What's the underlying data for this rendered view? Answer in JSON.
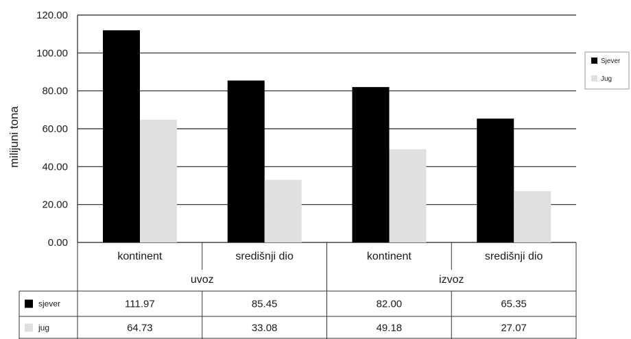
{
  "chart_data": {
    "type": "bar",
    "ylabel": "milijuni tona",
    "ylim": [
      0,
      120
    ],
    "yticks": [
      "0.00",
      "20.00",
      "40.00",
      "60.00",
      "80.00",
      "100.00",
      "120.00"
    ],
    "grid": true,
    "legend_position": "right",
    "groups": [
      {
        "label": "uvoz",
        "span": [
          0,
          1
        ]
      },
      {
        "label": "izvoz",
        "span": [
          2,
          3
        ]
      }
    ],
    "categories": [
      "kontinent",
      "središnji dio",
      "kontinent",
      "središnji dio"
    ],
    "series": [
      {
        "name": "Sjever",
        "table_label": "sjever",
        "color": "#000000",
        "values": [
          111.97,
          85.45,
          82.0,
          65.35
        ],
        "value_labels": [
          "111.97",
          "85.45",
          "82.00",
          "65.35"
        ]
      },
      {
        "name": "Jug",
        "table_label": "jug",
        "color": "#e0e0e0",
        "values": [
          64.73,
          33.08,
          49.18,
          27.07
        ],
        "value_labels": [
          "64.73",
          "33.08",
          "49.18",
          "27.07"
        ]
      }
    ]
  }
}
